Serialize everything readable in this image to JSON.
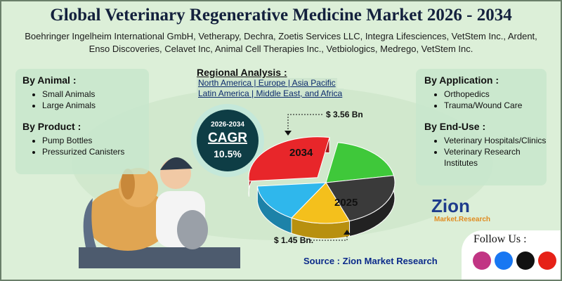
{
  "header": {
    "title": "Global Veterinary Regenerative Medicine Market 2026 - 2034",
    "companies": "Boehringer Ingelheim International GmbH, Vetherapy, Dechra, Zoetis Services LLC, Integra Lifesciences, VetStem Inc., Ardent, Enso Discoveries, Celavet Inc, Animal Cell Therapies Inc., Vetbiologics, Medrego, VetStem Inc."
  },
  "left_panel": [
    {
      "heading": "By Animal :",
      "items": [
        "Small Animals",
        "Large Animals"
      ]
    },
    {
      "heading": "By Product :",
      "items": [
        "Pump Bottles",
        "Pressurized Canisters"
      ]
    }
  ],
  "regional": {
    "heading": "Regional Analysis :",
    "lines": [
      "North America | Europe | Asia Pacific",
      "Latin America | Middle East, and Africa"
    ]
  },
  "cagr": {
    "years": "2026-2034",
    "label": "CAGR",
    "value": "10.5%"
  },
  "pie": {
    "label_top": "2034",
    "label_bottom": "2025",
    "value_top": "$ 3.56 Bn",
    "value_bottom": "$ 1.45 Bn."
  },
  "right_panel": [
    {
      "heading": "By Application :",
      "items": [
        "Orthopedics",
        "Trauma/Wound Care"
      ]
    },
    {
      "heading": "By End-Use :",
      "items": [
        "Veterinary Hospitals/Clinics",
        "Veterinary Research Institutes"
      ]
    }
  ],
  "logo": {
    "name": "Zion",
    "tagline": "Market.Research"
  },
  "follow": "Follow Us :",
  "source": "Source : Zion Market Research"
}
